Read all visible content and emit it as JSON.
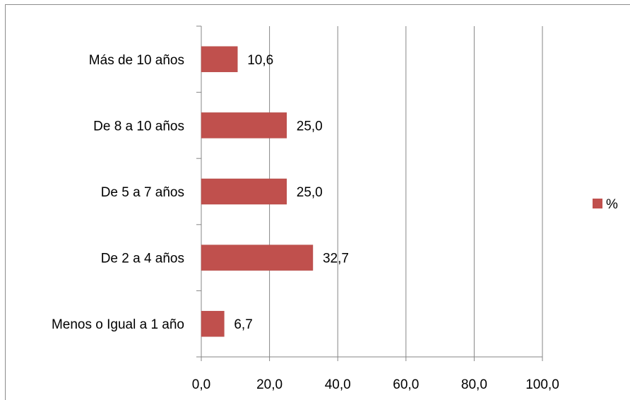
{
  "chart_data": {
    "type": "bar",
    "orientation": "horizontal",
    "title": "",
    "xlabel": "",
    "ylabel": "",
    "xlim": [
      0,
      100
    ],
    "x_ticks": [
      "0,0",
      "20,0",
      "40,0",
      "60,0",
      "80,0",
      "100,0"
    ],
    "x_tick_values": [
      0,
      20,
      40,
      60,
      80,
      100
    ],
    "grid": "vertical",
    "legend_position": "right",
    "categories": [
      "Más de 10 años",
      "De 8 a 10 años",
      "De 5 a 7 años",
      "De 2 a 4 años",
      "Menos o Igual a 1 año"
    ],
    "series": [
      {
        "name": "%",
        "color": "#c0504d",
        "values": [
          10.6,
          25.0,
          25.0,
          32.7,
          6.7
        ],
        "labels": [
          "10,6",
          "25,0",
          "25,0",
          "32,7",
          "6,7"
        ]
      }
    ]
  }
}
